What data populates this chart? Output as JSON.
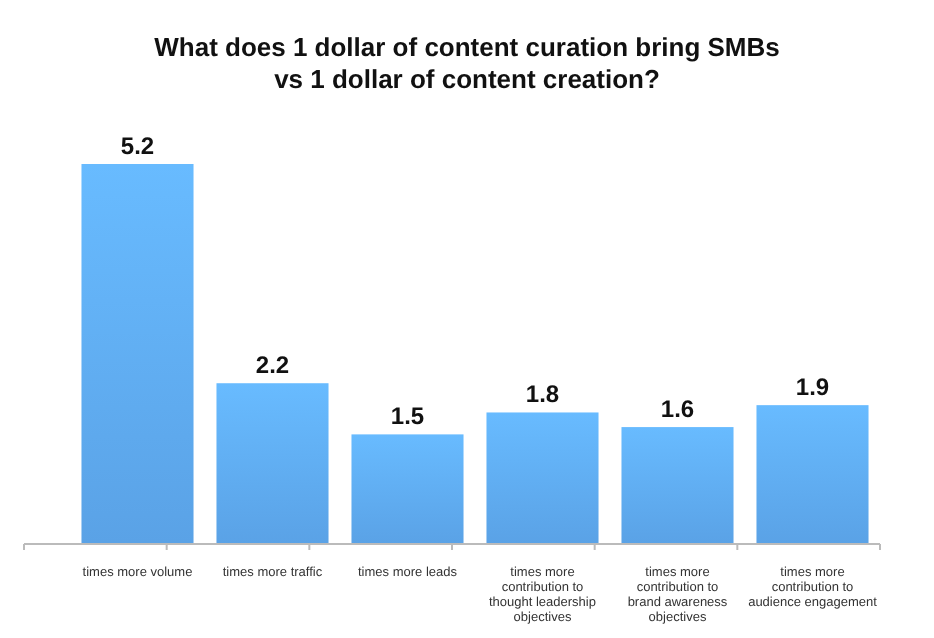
{
  "chart_data": {
    "type": "bar",
    "title": "What does 1 dollar of content curation bring SMBs vs 1 dollar of content creation?",
    "categories": [
      "times more volume",
      "times more traffic",
      "times more leads",
      "times more contribution to thought leadership objectives",
      "times more contribution to brand awareness objectives",
      "times more contribution to audience engagement"
    ],
    "values": [
      5.2,
      2.2,
      1.5,
      1.8,
      1.6,
      1.9
    ],
    "color": "#5aa2e6",
    "data_labels": true
  }
}
